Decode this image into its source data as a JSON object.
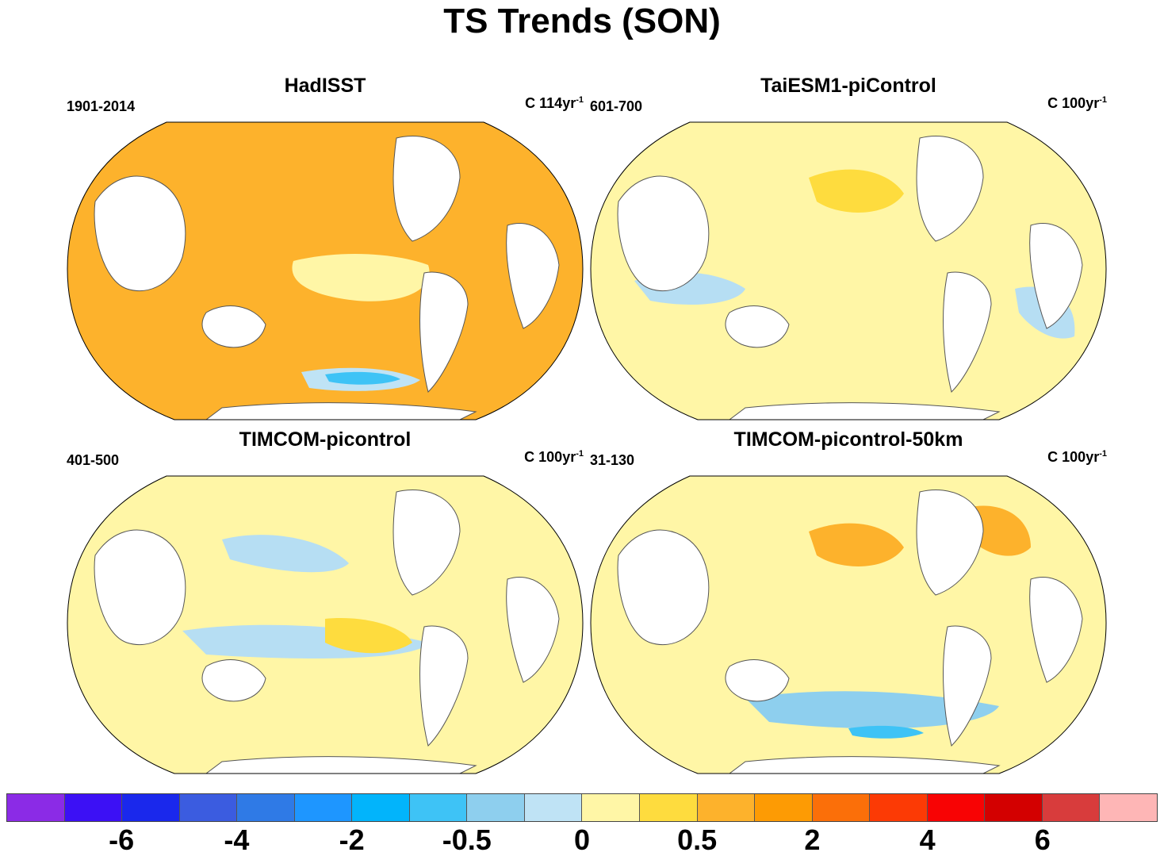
{
  "title": "TS Trends (SON)",
  "panels": [
    {
      "title": "HadISST",
      "period": "1901-2014",
      "units_prefix": "C 114yr",
      "units_exp": "-1",
      "fill": "#fdb22c",
      "blobs": [
        {
          "color": "#fff6a6",
          "shape": "equatorial-band"
        },
        {
          "color": "#bfe3f5",
          "shape": "southern-strip"
        },
        {
          "color": "#3ec3f6",
          "shape": "southern-core"
        }
      ]
    },
    {
      "title": "TaiESM1-piControl",
      "period": "601-700",
      "units_prefix": "C 100yr",
      "units_exp": "-1",
      "fill": "#fff6a6",
      "blobs": [
        {
          "color": "#b6def3",
          "shape": "west-pacific"
        },
        {
          "color": "#b6def3",
          "shape": "south-atlantic"
        },
        {
          "color": "#fedc3e",
          "shape": "north-pacific"
        }
      ]
    },
    {
      "title": "TIMCOM-picontrol",
      "period": "401-500",
      "units_prefix": "C 100yr",
      "units_exp": "-1",
      "fill": "#fff6a6",
      "blobs": [
        {
          "color": "#b6def3",
          "shape": "north-pacific-band"
        },
        {
          "color": "#b6def3",
          "shape": "tropical-band"
        },
        {
          "color": "#fedc3e",
          "shape": "east-pacific"
        }
      ]
    },
    {
      "title": "TIMCOM-picontrol-50km",
      "period": "31-130",
      "units_prefix": "C 100yr",
      "units_exp": "-1",
      "fill": "#fff6a6",
      "blobs": [
        {
          "color": "#fdb22c",
          "shape": "north-pacific"
        },
        {
          "color": "#fdb22c",
          "shape": "north-atlantic"
        },
        {
          "color": "#8ecfee",
          "shape": "southern-band"
        },
        {
          "color": "#3ec3f6",
          "shape": "southern-core"
        }
      ]
    }
  ],
  "colorbar": {
    "colors": [
      "#8b2be6",
      "#3c10f5",
      "#1a28ec",
      "#3b5ce0",
      "#2f7ae6",
      "#1e96ff",
      "#02b4fb",
      "#3ec3f6",
      "#8ecfee",
      "#bfe3f5",
      "#fff6a6",
      "#fedc3e",
      "#fdb22c",
      "#fd9b04",
      "#fb6f09",
      "#fc3a05",
      "#f80304",
      "#d30000",
      "#d83c3c",
      "#feb6b6"
    ],
    "labels": [
      {
        "text": "-6",
        "boundary": 2
      },
      {
        "text": "-4",
        "boundary": 4
      },
      {
        "text": "-2",
        "boundary": 6
      },
      {
        "text": "-0.5",
        "boundary": 8
      },
      {
        "text": "0",
        "boundary": 10
      },
      {
        "text": "0.5",
        "boundary": 12
      },
      {
        "text": "2",
        "boundary": 14
      },
      {
        "text": "4",
        "boundary": 16
      },
      {
        "text": "6",
        "boundary": 18
      }
    ]
  }
}
